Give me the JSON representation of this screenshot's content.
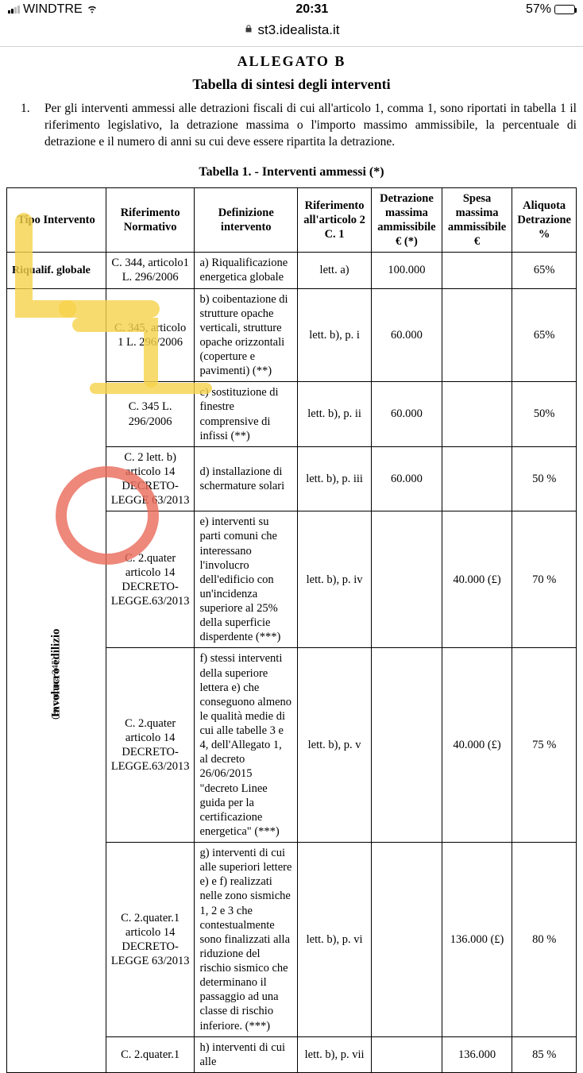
{
  "status": {
    "carrier": "WINDTRE",
    "time": "20:31",
    "battery_pct": "57%",
    "battery_fill_pct": 57
  },
  "browser": {
    "host": "st3.idealista.it"
  },
  "doc": {
    "allegato": "ALLEGATO B",
    "subtitle": "Tabella di sintesi degli interventi",
    "intro_num": "1.",
    "intro": "Per gli interventi ammessi alle detrazioni fiscali di cui all'articolo 1, comma 1, sono riportati in tabella 1 il riferimento legislativo, la detrazione massima o l'importo massimo ammissibile, la percentuale di detrazione e il numero di anni su cui deve essere ripartita la detrazione.",
    "table_title": "Tabella 1. - Interventi ammessi (*)",
    "headers": {
      "tipo": "Tipo Intervento",
      "rif": "Riferimento Normativo",
      "def": "Definizione intervento",
      "art": "Riferimento all'articolo 2 C. 1",
      "detr": "Detrazione massima ammissibile € (*)",
      "spesa": "Spesa massima ammissibile €",
      "aliq": "Aliquota Detrazione %"
    },
    "group1": {
      "label": "Riqualif. globale"
    },
    "group2": {
      "label": "Involucro edilizio",
      "sub": "(ex comma 345)"
    },
    "rows": [
      {
        "rif": "C. 344, articolo1 L. 296/2006",
        "def": "a) Riqualificazione energetica globale",
        "art": "lett. a)",
        "detr": "100.000",
        "spesa": "",
        "aliq": "65%"
      },
      {
        "rif": "C. 345, articolo 1 L. 296/2006",
        "def": "b) coibentazione di strutture opache verticali, strutture opache orizzontali (coperture e pavimenti) (**)",
        "art": "lett. b), p. i",
        "detr": "60.000",
        "spesa": "",
        "aliq": "65%"
      },
      {
        "rif": "C. 345 L. 296/2006",
        "def": "c) sostituzione di finestre comprensive di infissi (**)",
        "art": "lett. b), p. ii",
        "detr": "60.000",
        "spesa": "",
        "aliq": "50%"
      },
      {
        "rif": "C. 2 lett. b) articolo 14 DECRETO-LEGGE 63/2013",
        "def": "d) installazione di schermature solari",
        "art": "lett. b), p. iii",
        "detr": "60.000",
        "spesa": "",
        "aliq": "50 %"
      },
      {
        "rif": "C. 2.quater articolo 14 DECRETO-LEGGE.63/2013",
        "def": "e) interventi su parti comuni che interessano l'involucro dell'edificio con un'incidenza superiore al 25% della superficie disperdente (***)",
        "art": "lett. b), p. iv",
        "detr": "",
        "spesa": "40.000 (£)",
        "aliq": "70 %"
      },
      {
        "rif": "C. 2.quater articolo 14 DECRETO-LEGGE.63/2013",
        "def": "f) stessi interventi della superiore lettera e) che conseguono almeno le qualità medie di cui alle tabelle 3 e 4, dell'Allegato 1, al decreto 26/06/2015 \"decreto Linee guida per la certificazione energetica\" (***)",
        "art": "lett. b), p. v",
        "detr": "",
        "spesa": "40.000 (£)",
        "aliq": "75 %"
      },
      {
        "rif": "C. 2.quater.1 articolo 14 DECRETO-LEGGE 63/2013",
        "def": "g) interventi di cui alle superiori lettere e) e f) realizzati nelle zono sismiche 1, 2 e 3 che contestualmente sono finalizzati alla riduzione del rischio sismico che determinano il passaggio ad una classe di rischio inferiore. (***)",
        "art": "lett. b), p. vi",
        "detr": "",
        "spesa": "136.000 (£)",
        "aliq": "80 %"
      },
      {
        "rif": "C. 2.quater.1",
        "def": "h) interventi di cui alle",
        "art": "lett. b), p. vii",
        "detr": "",
        "spesa": "136.000",
        "aliq": "85 %"
      }
    ]
  },
  "annotations": {
    "yellow_stroke_color": "#f6d24acc",
    "red_circle_color": "#e86a5acc"
  }
}
